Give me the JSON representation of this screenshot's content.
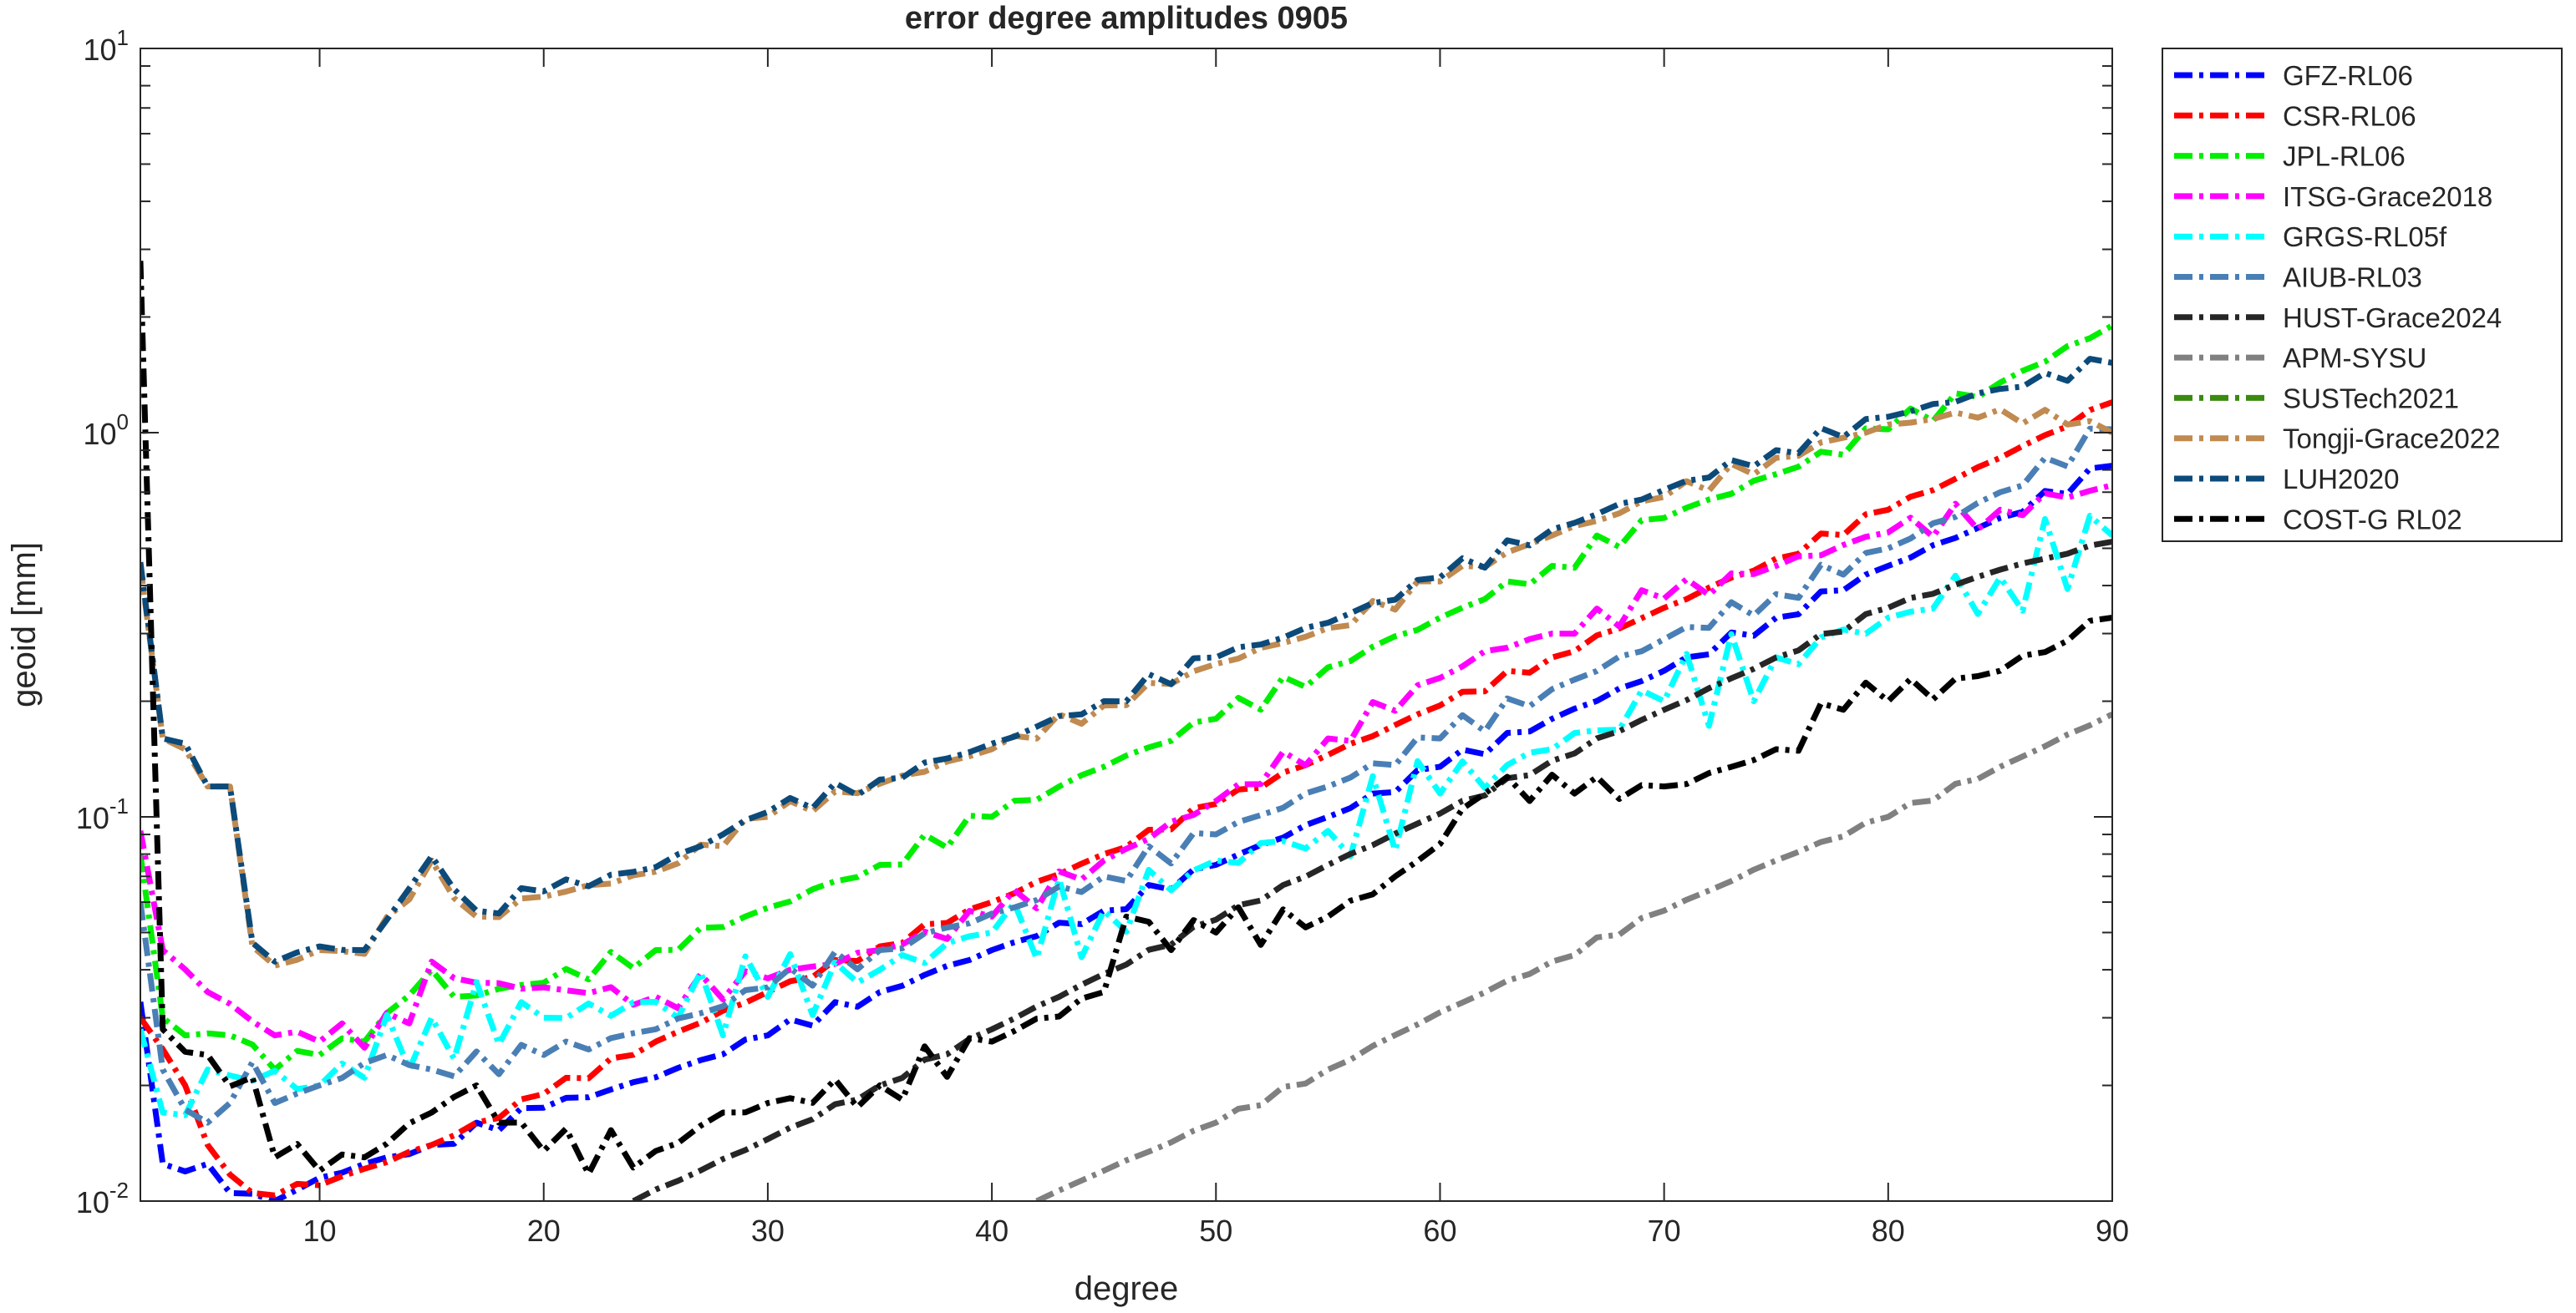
{
  "chart_data": {
    "type": "line",
    "title": "error degree amplitudes 0905",
    "xlabel": "degree",
    "ylabel": "geoid [mm]",
    "xlim": [
      2,
      90
    ],
    "ylim": [
      0.01,
      10
    ],
    "yscale": "log",
    "grid": false,
    "legend_position": "outside-top-right",
    "xticks": [
      10,
      20,
      30,
      40,
      50,
      60,
      70,
      80,
      90
    ],
    "xtick_labels": [
      "10",
      "20",
      "30",
      "40",
      "50",
      "60",
      "70",
      "80",
      "90"
    ],
    "ytick_labels": [
      {
        "base": "10",
        "exp": "-2"
      },
      {
        "base": "10",
        "exp": "-1"
      },
      {
        "base": "10",
        "exp": "0"
      },
      {
        "base": "10",
        "exp": "1"
      }
    ],
    "series": [
      {
        "name": "GFZ-RL06",
        "color": "#0000ff",
        "wiggle": 0.02,
        "points": [
          [
            2,
            0.033
          ],
          [
            3,
            0.0125
          ],
          [
            5,
            0.0125
          ],
          [
            6,
            0.0105
          ],
          [
            8,
            0.01
          ],
          [
            10,
            0.0115
          ],
          [
            15,
            0.014
          ],
          [
            20,
            0.0175
          ],
          [
            25,
            0.021
          ],
          [
            30,
            0.027
          ],
          [
            35,
            0.035
          ],
          [
            40,
            0.045
          ],
          [
            45,
            0.057
          ],
          [
            50,
            0.075
          ],
          [
            55,
            0.1
          ],
          [
            60,
            0.135
          ],
          [
            65,
            0.18
          ],
          [
            70,
            0.24
          ],
          [
            75,
            0.33
          ],
          [
            80,
            0.45
          ],
          [
            85,
            0.6
          ],
          [
            90,
            0.82
          ]
        ]
      },
      {
        "name": "CSR-RL06",
        "color": "#ff0000",
        "wiggle": 0.015,
        "points": [
          [
            2,
            0.03
          ],
          [
            4,
            0.02
          ],
          [
            5,
            0.014
          ],
          [
            7,
            0.0105
          ],
          [
            10,
            0.011
          ],
          [
            15,
            0.014
          ],
          [
            20,
            0.019
          ],
          [
            25,
            0.026
          ],
          [
            30,
            0.035
          ],
          [
            35,
            0.046
          ],
          [
            40,
            0.06
          ],
          [
            45,
            0.08
          ],
          [
            50,
            0.108
          ],
          [
            55,
            0.145
          ],
          [
            60,
            0.195
          ],
          [
            65,
            0.26
          ],
          [
            70,
            0.35
          ],
          [
            75,
            0.47
          ],
          [
            80,
            0.63
          ],
          [
            85,
            0.86
          ],
          [
            90,
            1.2
          ]
        ]
      },
      {
        "name": "JPL-RL06",
        "color": "#00ee00",
        "wiggle": 0.03,
        "points": [
          [
            2,
            0.08
          ],
          [
            3,
            0.03
          ],
          [
            4,
            0.027
          ],
          [
            6,
            0.027
          ],
          [
            8,
            0.022
          ],
          [
            10,
            0.024
          ],
          [
            12,
            0.026
          ],
          [
            15,
            0.04
          ],
          [
            16,
            0.034
          ],
          [
            20,
            0.037
          ],
          [
            25,
            0.045
          ],
          [
            30,
            0.058
          ],
          [
            35,
            0.075
          ],
          [
            40,
            0.1
          ],
          [
            45,
            0.135
          ],
          [
            50,
            0.18
          ],
          [
            55,
            0.245
          ],
          [
            60,
            0.33
          ],
          [
            65,
            0.45
          ],
          [
            70,
            0.6
          ],
          [
            75,
            0.78
          ],
          [
            80,
            1.02
          ],
          [
            85,
            1.35
          ],
          [
            90,
            1.9
          ]
        ]
      },
      {
        "name": "ITSG-Grace2018",
        "color": "#ff00ff",
        "wiggle": 0.04,
        "points": [
          [
            2,
            0.092
          ],
          [
            3,
            0.045
          ],
          [
            5,
            0.035
          ],
          [
            8,
            0.027
          ],
          [
            10,
            0.026
          ],
          [
            14,
            0.029
          ],
          [
            15,
            0.042
          ],
          [
            17,
            0.037
          ],
          [
            20,
            0.036
          ],
          [
            25,
            0.034
          ],
          [
            30,
            0.038
          ],
          [
            35,
            0.045
          ],
          [
            40,
            0.055
          ],
          [
            45,
            0.077
          ],
          [
            50,
            0.11
          ],
          [
            55,
            0.16
          ],
          [
            60,
            0.23
          ],
          [
            62,
            0.27
          ],
          [
            65,
            0.3
          ],
          [
            70,
            0.37
          ],
          [
            75,
            0.45
          ],
          [
            80,
            0.55
          ],
          [
            85,
            0.63
          ],
          [
            90,
            0.73
          ]
        ]
      },
      {
        "name": "GRGS-RL05f",
        "color": "#00ffff",
        "wiggle": 0.11,
        "points": [
          [
            2,
            0.028
          ],
          [
            3,
            0.017
          ],
          [
            5,
            0.022
          ],
          [
            10,
            0.02
          ],
          [
            15,
            0.03
          ],
          [
            20,
            0.03
          ],
          [
            25,
            0.033
          ],
          [
            30,
            0.034
          ],
          [
            35,
            0.04
          ],
          [
            40,
            0.05
          ],
          [
            45,
            0.057
          ],
          [
            50,
            0.077
          ],
          [
            55,
            0.092
          ],
          [
            60,
            0.115
          ],
          [
            65,
            0.15
          ],
          [
            70,
            0.2
          ],
          [
            75,
            0.26
          ],
          [
            80,
            0.33
          ],
          [
            85,
            0.42
          ],
          [
            90,
            0.54
          ]
        ]
      },
      {
        "name": "AIUB-RL03",
        "color": "#4a7fb5",
        "wiggle": 0.035,
        "points": [
          [
            2,
            0.06
          ],
          [
            3,
            0.022
          ],
          [
            5,
            0.016
          ],
          [
            7,
            0.023
          ],
          [
            8,
            0.018
          ],
          [
            10,
            0.02
          ],
          [
            13,
            0.024
          ],
          [
            15,
            0.022
          ],
          [
            20,
            0.024
          ],
          [
            25,
            0.028
          ],
          [
            30,
            0.036
          ],
          [
            35,
            0.045
          ],
          [
            40,
            0.056
          ],
          [
            45,
            0.07
          ],
          [
            50,
            0.09
          ],
          [
            55,
            0.12
          ],
          [
            60,
            0.16
          ],
          [
            65,
            0.215
          ],
          [
            70,
            0.29
          ],
          [
            75,
            0.38
          ],
          [
            80,
            0.5
          ],
          [
            85,
            0.7
          ],
          [
            90,
            1.02
          ]
        ]
      },
      {
        "name": "HUST-Grace2024",
        "color": "#262626",
        "wiggle": 0.01,
        "points": [
          [
            24,
            0.01
          ],
          [
            30,
            0.0145
          ],
          [
            35,
            0.02
          ],
          [
            40,
            0.028
          ],
          [
            45,
            0.039
          ],
          [
            50,
            0.054
          ],
          [
            55,
            0.075
          ],
          [
            60,
            0.102
          ],
          [
            65,
            0.14
          ],
          [
            70,
            0.19
          ],
          [
            75,
            0.26
          ],
          [
            80,
            0.35
          ],
          [
            85,
            0.44
          ],
          [
            90,
            0.52
          ]
        ]
      },
      {
        "name": "APM-SYSU",
        "color": "#808080",
        "wiggle": 0.01,
        "points": [
          [
            42,
            0.01
          ],
          [
            45,
            0.012
          ],
          [
            50,
            0.016
          ],
          [
            55,
            0.022
          ],
          [
            60,
            0.031
          ],
          [
            65,
            0.042
          ],
          [
            70,
            0.057
          ],
          [
            75,
            0.077
          ],
          [
            80,
            0.1
          ],
          [
            85,
            0.135
          ],
          [
            90,
            0.185
          ]
        ]
      },
      {
        "name": "SUSTech2021",
        "color": "#3a8a10",
        "wiggle": 0.0,
        "points": []
      },
      {
        "name": "Tongji-Grace2022",
        "color": "#c08a50",
        "wiggle": 0.025,
        "points": [
          [
            2,
            0.45
          ],
          [
            3,
            0.16
          ],
          [
            4,
            0.15
          ],
          [
            5,
            0.12
          ],
          [
            6,
            0.12
          ],
          [
            7,
            0.046
          ],
          [
            8,
            0.041
          ],
          [
            10,
            0.045
          ],
          [
            12,
            0.044
          ],
          [
            15,
            0.077
          ],
          [
            17,
            0.055
          ],
          [
            20,
            0.062
          ],
          [
            25,
            0.072
          ],
          [
            30,
            0.1
          ],
          [
            35,
            0.122
          ],
          [
            40,
            0.15
          ],
          [
            45,
            0.195
          ],
          [
            50,
            0.25
          ],
          [
            55,
            0.31
          ],
          [
            60,
            0.41
          ],
          [
            65,
            0.54
          ],
          [
            70,
            0.68
          ],
          [
            75,
            0.86
          ],
          [
            80,
            1.05
          ],
          [
            85,
            1.15
          ],
          [
            88,
            1.05
          ],
          [
            90,
            1.0
          ]
        ]
      },
      {
        "name": "LUH2020",
        "color": "#0c4a7a",
        "wiggle": 0.025,
        "points": [
          [
            2,
            0.46
          ],
          [
            3,
            0.16
          ],
          [
            4,
            0.155
          ],
          [
            5,
            0.12
          ],
          [
            6,
            0.12
          ],
          [
            7,
            0.047
          ],
          [
            8,
            0.042
          ],
          [
            10,
            0.046
          ],
          [
            12,
            0.045
          ],
          [
            15,
            0.079
          ],
          [
            17,
            0.057
          ],
          [
            20,
            0.064
          ],
          [
            25,
            0.074
          ],
          [
            30,
            0.103
          ],
          [
            35,
            0.125
          ],
          [
            40,
            0.155
          ],
          [
            45,
            0.2
          ],
          [
            50,
            0.26
          ],
          [
            55,
            0.32
          ],
          [
            60,
            0.42
          ],
          [
            65,
            0.56
          ],
          [
            70,
            0.71
          ],
          [
            75,
            0.9
          ],
          [
            80,
            1.1
          ],
          [
            85,
            1.3
          ],
          [
            90,
            1.52
          ]
        ]
      },
      {
        "name": "COST-G RL02",
        "color": "#000000",
        "wiggle": 0.06,
        "points": [
          [
            2,
            2.8
          ],
          [
            3,
            0.028
          ],
          [
            5,
            0.024
          ],
          [
            7,
            0.021
          ],
          [
            8,
            0.013
          ],
          [
            10,
            0.012
          ],
          [
            12,
            0.013
          ],
          [
            15,
            0.017
          ],
          [
            17,
            0.02
          ],
          [
            18,
            0.016
          ],
          [
            20,
            0.0135
          ],
          [
            25,
            0.0135
          ],
          [
            28,
            0.017
          ],
          [
            30,
            0.018
          ],
          [
            35,
            0.02
          ],
          [
            40,
            0.026
          ],
          [
            45,
            0.035
          ],
          [
            46,
            0.055
          ],
          [
            48,
            0.045
          ],
          [
            50,
            0.05
          ],
          [
            55,
            0.055
          ],
          [
            58,
            0.07
          ],
          [
            60,
            0.085
          ],
          [
            62,
            0.115
          ],
          [
            64,
            0.11
          ],
          [
            66,
            0.115
          ],
          [
            70,
            0.12
          ],
          [
            72,
            0.13
          ],
          [
            75,
            0.15
          ],
          [
            78,
            0.19
          ],
          [
            80,
            0.2
          ],
          [
            85,
            0.24
          ],
          [
            90,
            0.33
          ]
        ]
      }
    ]
  }
}
